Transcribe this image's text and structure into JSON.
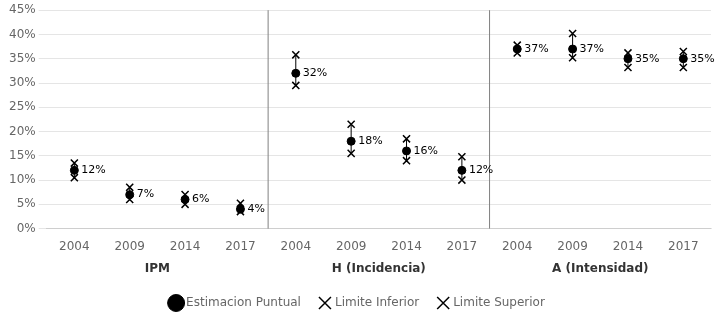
{
  "chart_data": {
    "type": "dot",
    "groups": [
      {
        "name": "IPM",
        "categories": [
          "2004",
          "2009",
          "2014",
          "2017"
        ]
      },
      {
        "name": "H (Incidencia)",
        "categories": [
          "2004",
          "2009",
          "2014",
          "2017"
        ]
      },
      {
        "name": "A (Intensidad)",
        "categories": [
          "2004",
          "2009",
          "2014",
          "2017"
        ]
      }
    ],
    "series": [
      {
        "name": "Estimacion Puntual",
        "color": "#000000",
        "marker": "circle",
        "values": [
          0.12,
          0.07,
          0.06,
          0.04,
          0.32,
          0.18,
          0.16,
          0.12,
          0.37,
          0.37,
          0.35,
          0.35
        ],
        "value_labels": [
          "12%",
          "7%",
          "6%",
          "4%",
          "32%",
          "18%",
          "16%",
          "12%",
          "37%",
          "37%",
          "35%",
          "35%"
        ]
      },
      {
        "name": "Limite Inferior",
        "color": "#000000",
        "marker": "x",
        "values": [
          0.105,
          0.06,
          0.05,
          0.035,
          0.295,
          0.155,
          0.14,
          0.1,
          0.362,
          0.352,
          0.332,
          0.332
        ]
      },
      {
        "name": "Limite Superior",
        "color": "#000000",
        "marker": "x",
        "values": [
          0.135,
          0.085,
          0.07,
          0.052,
          0.358,
          0.215,
          0.185,
          0.148,
          0.378,
          0.402,
          0.362,
          0.365
        ]
      }
    ],
    "ylim": [
      0.0,
      0.45
    ],
    "yticks": [
      {
        "value": 0.0,
        "label": "0%"
      },
      {
        "value": 0.05,
        "label": "5%"
      },
      {
        "value": 0.1,
        "label": "10%"
      },
      {
        "value": 0.15,
        "label": "15%"
      },
      {
        "value": 0.2,
        "label": "20%"
      },
      {
        "value": 0.25,
        "label": "25%"
      },
      {
        "value": 0.3,
        "label": "30%"
      },
      {
        "value": 0.35,
        "label": "35%"
      },
      {
        "value": 0.4,
        "label": "40%"
      },
      {
        "value": 0.45,
        "label": "45%"
      }
    ],
    "grid": true,
    "legend": "bottom",
    "data_labels": true
  }
}
